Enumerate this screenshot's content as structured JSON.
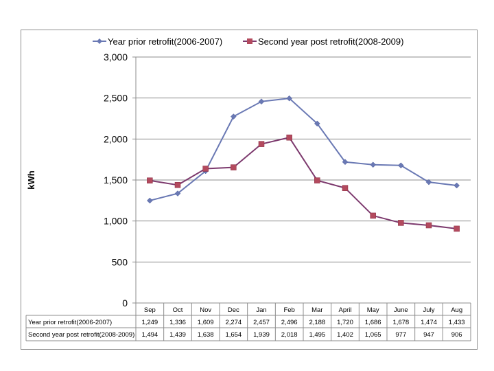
{
  "chart_data": {
    "type": "line",
    "title": "",
    "xlabel": "",
    "ylabel": "kWh",
    "ylim": [
      0,
      3000
    ],
    "yticks": [
      0,
      500,
      1000,
      1500,
      2000,
      2500,
      3000
    ],
    "ytick_labels": [
      "0",
      "500",
      "1,000",
      "1,500",
      "2,000",
      "2,500",
      "3,000"
    ],
    "grid": true,
    "legend_position": "top",
    "categories": [
      "Sep",
      "Oct",
      "Nov",
      "Dec",
      "Jan",
      "Feb",
      "Mar",
      "April",
      "May",
      "June",
      "July",
      "Aug"
    ],
    "series": [
      {
        "name": "Year prior retrofit(2006-2007)",
        "color": "#6a79b4",
        "marker": "diamond",
        "values": [
          1249,
          1336,
          1609,
          2274,
          2457,
          2496,
          2188,
          1720,
          1686,
          1678,
          1474,
          1433
        ],
        "labels": [
          "1,249",
          "1,336",
          "1,609",
          "2,274",
          "2,457",
          "2,496",
          "2,188",
          "1,720",
          "1,686",
          "1,678",
          "1,474",
          "1,433"
        ]
      },
      {
        "name": "Second year post retrofit(2008-2009)",
        "color": "#b34a5e",
        "line_color": "#7d3a6e",
        "marker": "square",
        "values": [
          1494,
          1439,
          1638,
          1654,
          1939,
          2018,
          1495,
          1402,
          1065,
          977,
          947,
          906
        ],
        "labels": [
          "1,494",
          "1,439",
          "1,638",
          "1,654",
          "1,939",
          "2,018",
          "1,495",
          "1,402",
          "1,065",
          "977",
          "947",
          "906"
        ]
      }
    ]
  }
}
